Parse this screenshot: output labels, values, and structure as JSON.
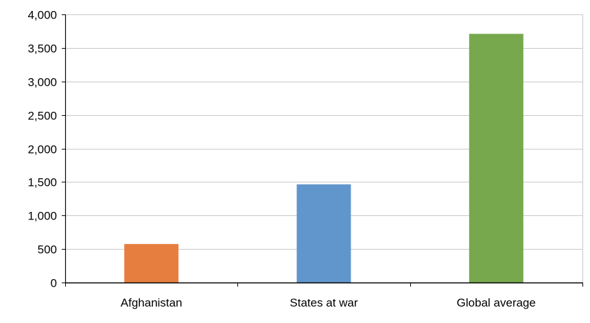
{
  "chart_data": {
    "type": "bar",
    "title": "",
    "xlabel": "",
    "ylabel": "",
    "categories": [
      "Afghanistan",
      "States at war",
      "Global average"
    ],
    "values": [
      575,
      1465,
      3710
    ],
    "colors": [
      "#E67E40",
      "#6096CC",
      "#77A84E"
    ],
    "ylim": [
      0,
      4000
    ],
    "yticks": [
      0,
      500,
      1000,
      1500,
      2000,
      2500,
      3000,
      3500,
      4000
    ],
    "ytick_labels": [
      "0",
      "500",
      "1,000",
      "1,500",
      "2,000",
      "2,500",
      "3,000",
      "3,500",
      "4,000"
    ],
    "grid": true,
    "legend": "none"
  }
}
